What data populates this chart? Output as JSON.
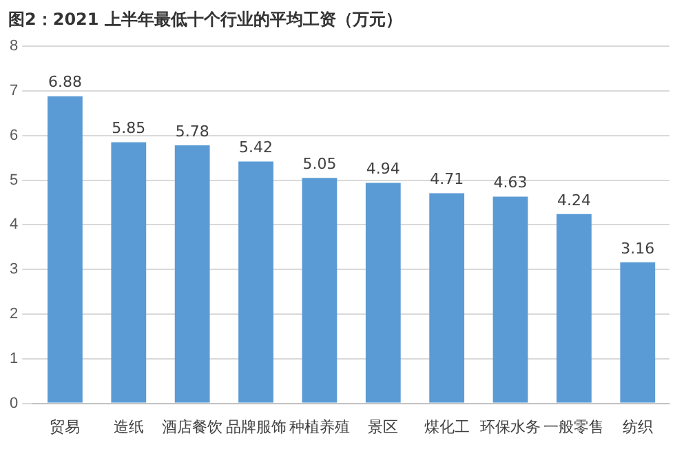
{
  "chart_data": {
    "type": "bar",
    "title": "图2：2021 上半年最低十个行业的平均工资（万元）",
    "categories": [
      "贸易",
      "造纸",
      "酒店餐饮",
      "品牌服饰",
      "种植养殖",
      "景区",
      "煤化工",
      "环保水务",
      "一般零售",
      "纺织"
    ],
    "values": [
      6.88,
      5.85,
      5.78,
      5.42,
      5.05,
      4.94,
      4.71,
      4.63,
      4.24,
      3.16
    ],
    "color": "#5b9bd5",
    "ylim": [
      0,
      8
    ],
    "yticks": [
      0,
      1,
      2,
      3,
      4,
      5,
      6,
      7,
      8
    ],
    "grid": "y",
    "data_labels": true
  }
}
